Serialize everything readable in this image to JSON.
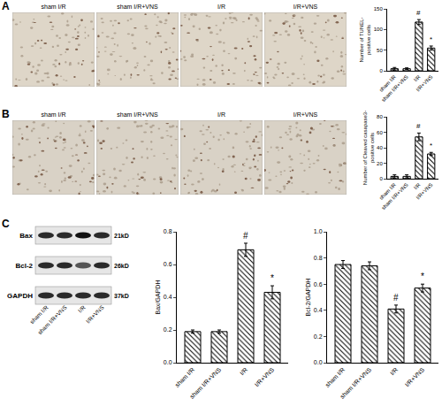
{
  "figure": {
    "panels": [
      {
        "label": "A",
        "images": [
          "sham I/R",
          "sham I/R+VNS",
          "I/R",
          "I/R+VNS"
        ]
      },
      {
        "label": "B",
        "images": [
          "sham I/R",
          "sham I/R+VNS",
          "I/R",
          "I/R+VNS"
        ]
      },
      {
        "label": "C",
        "blot": {
          "rows": [
            {
              "name": "Bax",
              "size": "21kD"
            },
            {
              "name": "Bcl-2",
              "size": "26kD"
            },
            {
              "name": "GAPDH",
              "size": "37kD"
            }
          ],
          "lanes": [
            "sham I/R",
            "sham I/R+VNS",
            "I/R",
            "I/R+VNS"
          ]
        }
      }
    ]
  },
  "chart_data": [
    {
      "type": "bar",
      "categories": [
        "sham I/R",
        "sham I/R+VNS",
        "I/R",
        "I/R+VNS"
      ],
      "values": [
        5,
        5,
        118,
        55
      ],
      "errors": [
        3,
        2,
        6,
        5
      ],
      "color": "#ffffff",
      "y_label": "Number of TUNEL-positive cells",
      "ylim": [
        0,
        150
      ],
      "yticks": [
        0,
        50,
        100,
        150
      ],
      "grid": false,
      "annotations": [
        {
          "category": "I/R",
          "text": "#"
        },
        {
          "category": "I/R+VNS",
          "text": "*"
        }
      ]
    },
    {
      "type": "bar",
      "categories": [
        "sham I/R",
        "sham I/R+VNS",
        "I/R",
        "I/R+VNS"
      ],
      "values": [
        3,
        3,
        54,
        32
      ],
      "errors": [
        2,
        2,
        5,
        2
      ],
      "color": "#ffffff",
      "y_label": "Number of Cleaved casapase3-positive cells",
      "ylim": [
        0,
        80
      ],
      "yticks": [
        0,
        20,
        40,
        60,
        80
      ],
      "grid": false,
      "annotations": [
        {
          "category": "I/R",
          "text": "#"
        },
        {
          "category": "I/R+VNS",
          "text": "*"
        }
      ]
    },
    {
      "type": "bar",
      "categories": [
        "sham I/R",
        "sham I/R+VNS",
        "I/R",
        "I/R+VNS"
      ],
      "values": [
        0.19,
        0.19,
        0.69,
        0.43
      ],
      "errors": [
        0.01,
        0.01,
        0.04,
        0.04
      ],
      "color": "#ffffff",
      "y_label": "Bax/GAPDH",
      "ylim": [
        0,
        0.8
      ],
      "yticks": [
        {
          "value": 0,
          "label": "0.0"
        },
        0.2,
        0.4,
        0.6,
        0.8
      ],
      "grid": false,
      "annotations": [
        {
          "category": "I/R",
          "text": "#"
        },
        {
          "category": "I/R+VNS",
          "text": "*"
        }
      ]
    },
    {
      "type": "bar",
      "categories": [
        "sham I/R",
        "sham I/R+VNS",
        "I/R",
        "I/R+VNS"
      ],
      "values": [
        0.75,
        0.74,
        0.41,
        0.57
      ],
      "errors": [
        0.03,
        0.03,
        0.03,
        0.03
      ],
      "color": "#ffffff",
      "y_label": "Bcl-2/GAPDH",
      "ylim": [
        0,
        1.0
      ],
      "yticks": [
        {
          "value": 0,
          "label": "0.0"
        },
        0.2,
        0.4,
        0.6,
        0.8,
        {
          "value": 1.0,
          "label": "1.0"
        }
      ],
      "grid": false,
      "annotations": [
        {
          "category": "I/R",
          "text": "#"
        },
        {
          "category": "I/R+VNS",
          "text": "*"
        }
      ]
    }
  ]
}
